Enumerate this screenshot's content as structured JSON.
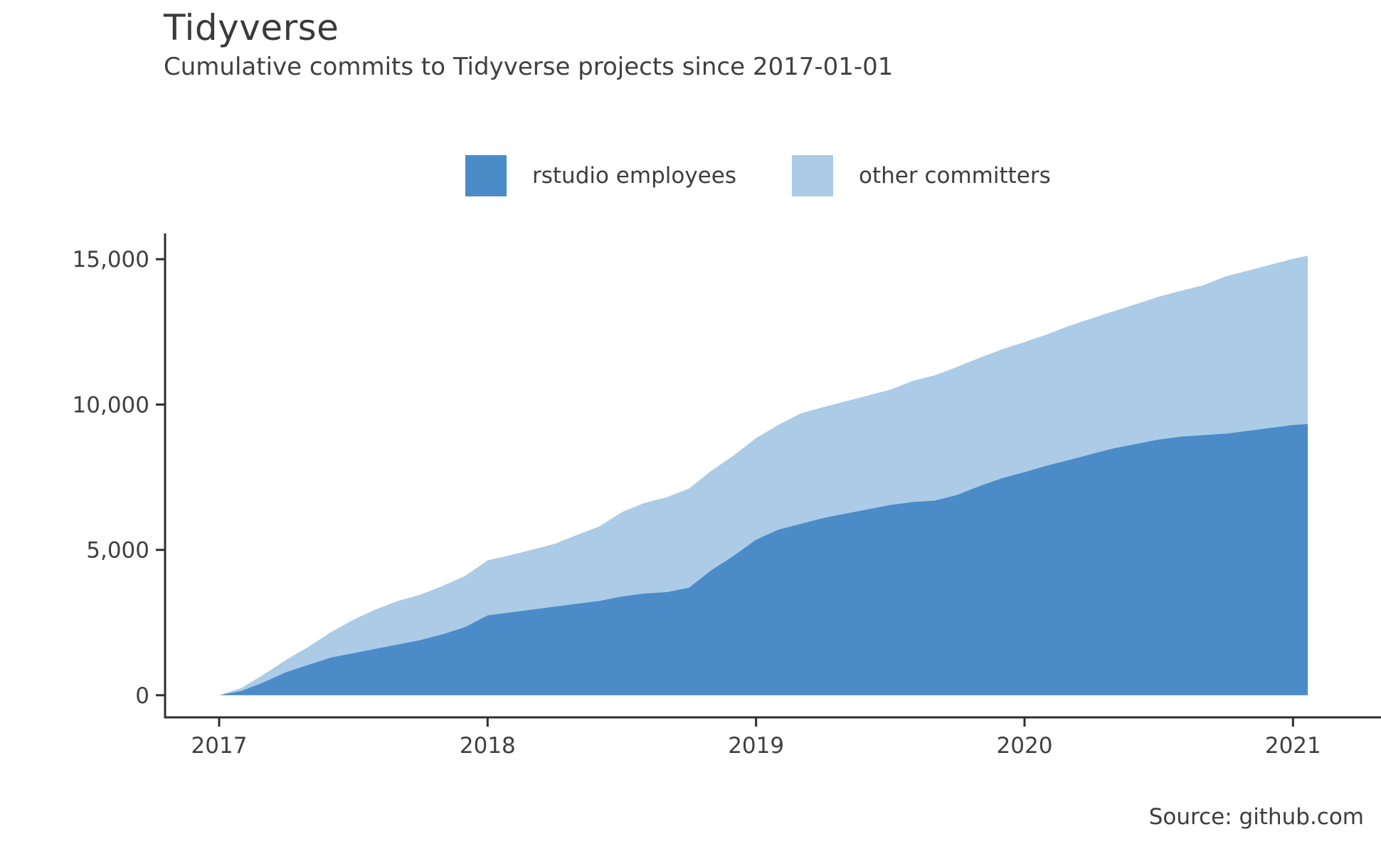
{
  "header": {
    "title": "Tidyverse",
    "subtitle": "Cumulative commits to Tidyverse projects since 2017-01-01"
  },
  "legend": {
    "items": [
      {
        "label": "rstudio employees",
        "color": "#4b8cc8"
      },
      {
        "label": "other committers",
        "color": "#abcbe7"
      }
    ]
  },
  "footer": {
    "source": "Source: github.com"
  },
  "chart_data": {
    "type": "area",
    "stacked": true,
    "title": "Tidyverse",
    "subtitle": "Cumulative commits to Tidyverse projects since 2017-01-01",
    "xlabel": "",
    "ylabel": "",
    "legend_position": "top",
    "grid": false,
    "xlim": [
      2016.8,
      2021.33
    ],
    "ylim": [
      0,
      15880
    ],
    "x_ticks": [
      {
        "value": 2017,
        "label": "2017"
      },
      {
        "value": 2018,
        "label": "2018"
      },
      {
        "value": 2019,
        "label": "2019"
      },
      {
        "value": 2020,
        "label": "2020"
      },
      {
        "value": 2021,
        "label": "2021"
      }
    ],
    "y_ticks": [
      {
        "value": 0,
        "label": "0"
      },
      {
        "value": 5000,
        "label": "5,000"
      },
      {
        "value": 10000,
        "label": "10,000"
      },
      {
        "value": 15000,
        "label": "15,000"
      }
    ],
    "x": [
      2017.0,
      2017.083,
      2017.167,
      2017.25,
      2017.333,
      2017.417,
      2017.5,
      2017.583,
      2017.667,
      2017.75,
      2017.833,
      2017.917,
      2018.0,
      2018.083,
      2018.167,
      2018.25,
      2018.333,
      2018.417,
      2018.5,
      2018.583,
      2018.667,
      2018.75,
      2018.833,
      2018.917,
      2019.0,
      2019.083,
      2019.167,
      2019.25,
      2019.333,
      2019.417,
      2019.5,
      2019.583,
      2019.667,
      2019.75,
      2019.833,
      2019.917,
      2020.0,
      2020.083,
      2020.167,
      2020.25,
      2020.333,
      2020.417,
      2020.5,
      2020.583,
      2020.667,
      2020.75,
      2020.833,
      2020.917,
      2021.0,
      2021.055
    ],
    "series": [
      {
        "name": "rstudio employees",
        "color": "#4b8cc8",
        "values": [
          0,
          150,
          450,
          800,
          1050,
          1300,
          1450,
          1600,
          1750,
          1900,
          2100,
          2350,
          2750,
          2850,
          2950,
          3050,
          3150,
          3250,
          3400,
          3500,
          3550,
          3700,
          4300,
          4800,
          5355,
          5700,
          5900,
          6100,
          6250,
          6400,
          6550,
          6650,
          6700,
          6900,
          7200,
          7470,
          7680,
          7900,
          8100,
          8300,
          8500,
          8650,
          8800,
          8900,
          8950,
          9000,
          9100,
          9200,
          9300,
          9330
        ]
      },
      {
        "name": "other committers",
        "color": "#abcbe7",
        "values": [
          0,
          100,
          270,
          420,
          620,
          870,
          1150,
          1350,
          1500,
          1560,
          1660,
          1760,
          1890,
          1960,
          2060,
          2160,
          2360,
          2560,
          2900,
          3110,
          3260,
          3410,
          3420,
          3450,
          3490,
          3600,
          3800,
          3810,
          3860,
          3910,
          3960,
          4160,
          4310,
          4400,
          4410,
          4430,
          4470,
          4510,
          4610,
          4660,
          4710,
          4810,
          4910,
          5010,
          5160,
          5410,
          5510,
          5610,
          5710,
          5790
        ]
      }
    ]
  }
}
